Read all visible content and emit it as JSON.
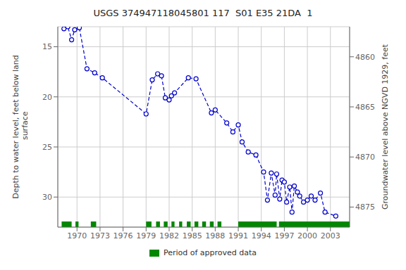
{
  "chart_data": {
    "type": "line",
    "title": "USGS 374947118045801 117  S01 E35 21DA  1",
    "ylabel": "Depth to water level, feet below land\n surface",
    "y2label": "Groundwater level above NGVD 1929, feet",
    "x": [
      1968.3,
      1968.8,
      1969.3,
      1969.7,
      1970.3,
      1971.3,
      1972.3,
      1973.3,
      1979.0,
      1979.8,
      1980.5,
      1981.0,
      1981.5,
      1982.0,
      1982.3,
      1982.7,
      1984.5,
      1985.5,
      1987.5,
      1988.0,
      1989.5,
      1990.3,
      1991.0,
      1991.5,
      1992.3,
      1993.3,
      1994.3,
      1994.8,
      1995.3,
      1995.8,
      1996.0,
      1996.4,
      1996.7,
      1997.0,
      1997.3,
      1997.7,
      1998.0,
      1998.3,
      1998.7,
      1999.0,
      1999.5,
      2000.0,
      2000.5,
      2001.0,
      2001.7,
      2002.3,
      2003.7
    ],
    "values": [
      13.2,
      13.0,
      14.3,
      13.3,
      13.1,
      17.2,
      17.6,
      18.1,
      21.7,
      18.3,
      17.7,
      17.9,
      20.1,
      20.3,
      19.9,
      19.6,
      18.1,
      18.2,
      21.6,
      21.3,
      22.6,
      23.5,
      22.8,
      24.5,
      25.5,
      25.8,
      27.5,
      30.3,
      27.6,
      29.8,
      27.7,
      30.2,
      28.3,
      28.5,
      30.5,
      29.0,
      31.5,
      28.9,
      29.5,
      29.9,
      30.5,
      30.3,
      29.9,
      30.3,
      29.6,
      31.5,
      31.9
    ],
    "color": "#0000cc",
    "line_style": "dashed",
    "marker": "circle",
    "xlim": [
      1967.5,
      2005.5
    ],
    "xticks": [
      1970,
      1973,
      1976,
      1979,
      1982,
      1985,
      1988,
      1991,
      1994,
      1997,
      2000,
      2003
    ],
    "ylim": [
      33,
      13
    ],
    "yticks": [
      15,
      20,
      25,
      30
    ],
    "y2lim": [
      4877,
      4857
    ],
    "y2ticks": [
      4875,
      4870,
      4865,
      4860
    ],
    "grid": true,
    "legend": "bottom",
    "approved_periods": {
      "name": "Period of approved data",
      "color": "#008800",
      "ranges": [
        [
          1968.0,
          1969.3
        ],
        [
          1969.8,
          1970.2
        ],
        [
          1971.8,
          1972.5
        ],
        [
          1979.0,
          1979.7
        ],
        [
          1980.3,
          1980.8
        ],
        [
          1981.3,
          1981.8
        ],
        [
          1982.3,
          1982.7
        ],
        [
          1983.3,
          1983.7
        ],
        [
          1984.3,
          1984.8
        ],
        [
          1985.3,
          1985.8
        ],
        [
          1986.3,
          1986.8
        ],
        [
          1987.3,
          1987.8
        ],
        [
          1988.3,
          1988.8
        ],
        [
          1991.0,
          1996.0
        ],
        [
          1996.3,
          2005.5
        ]
      ]
    }
  }
}
